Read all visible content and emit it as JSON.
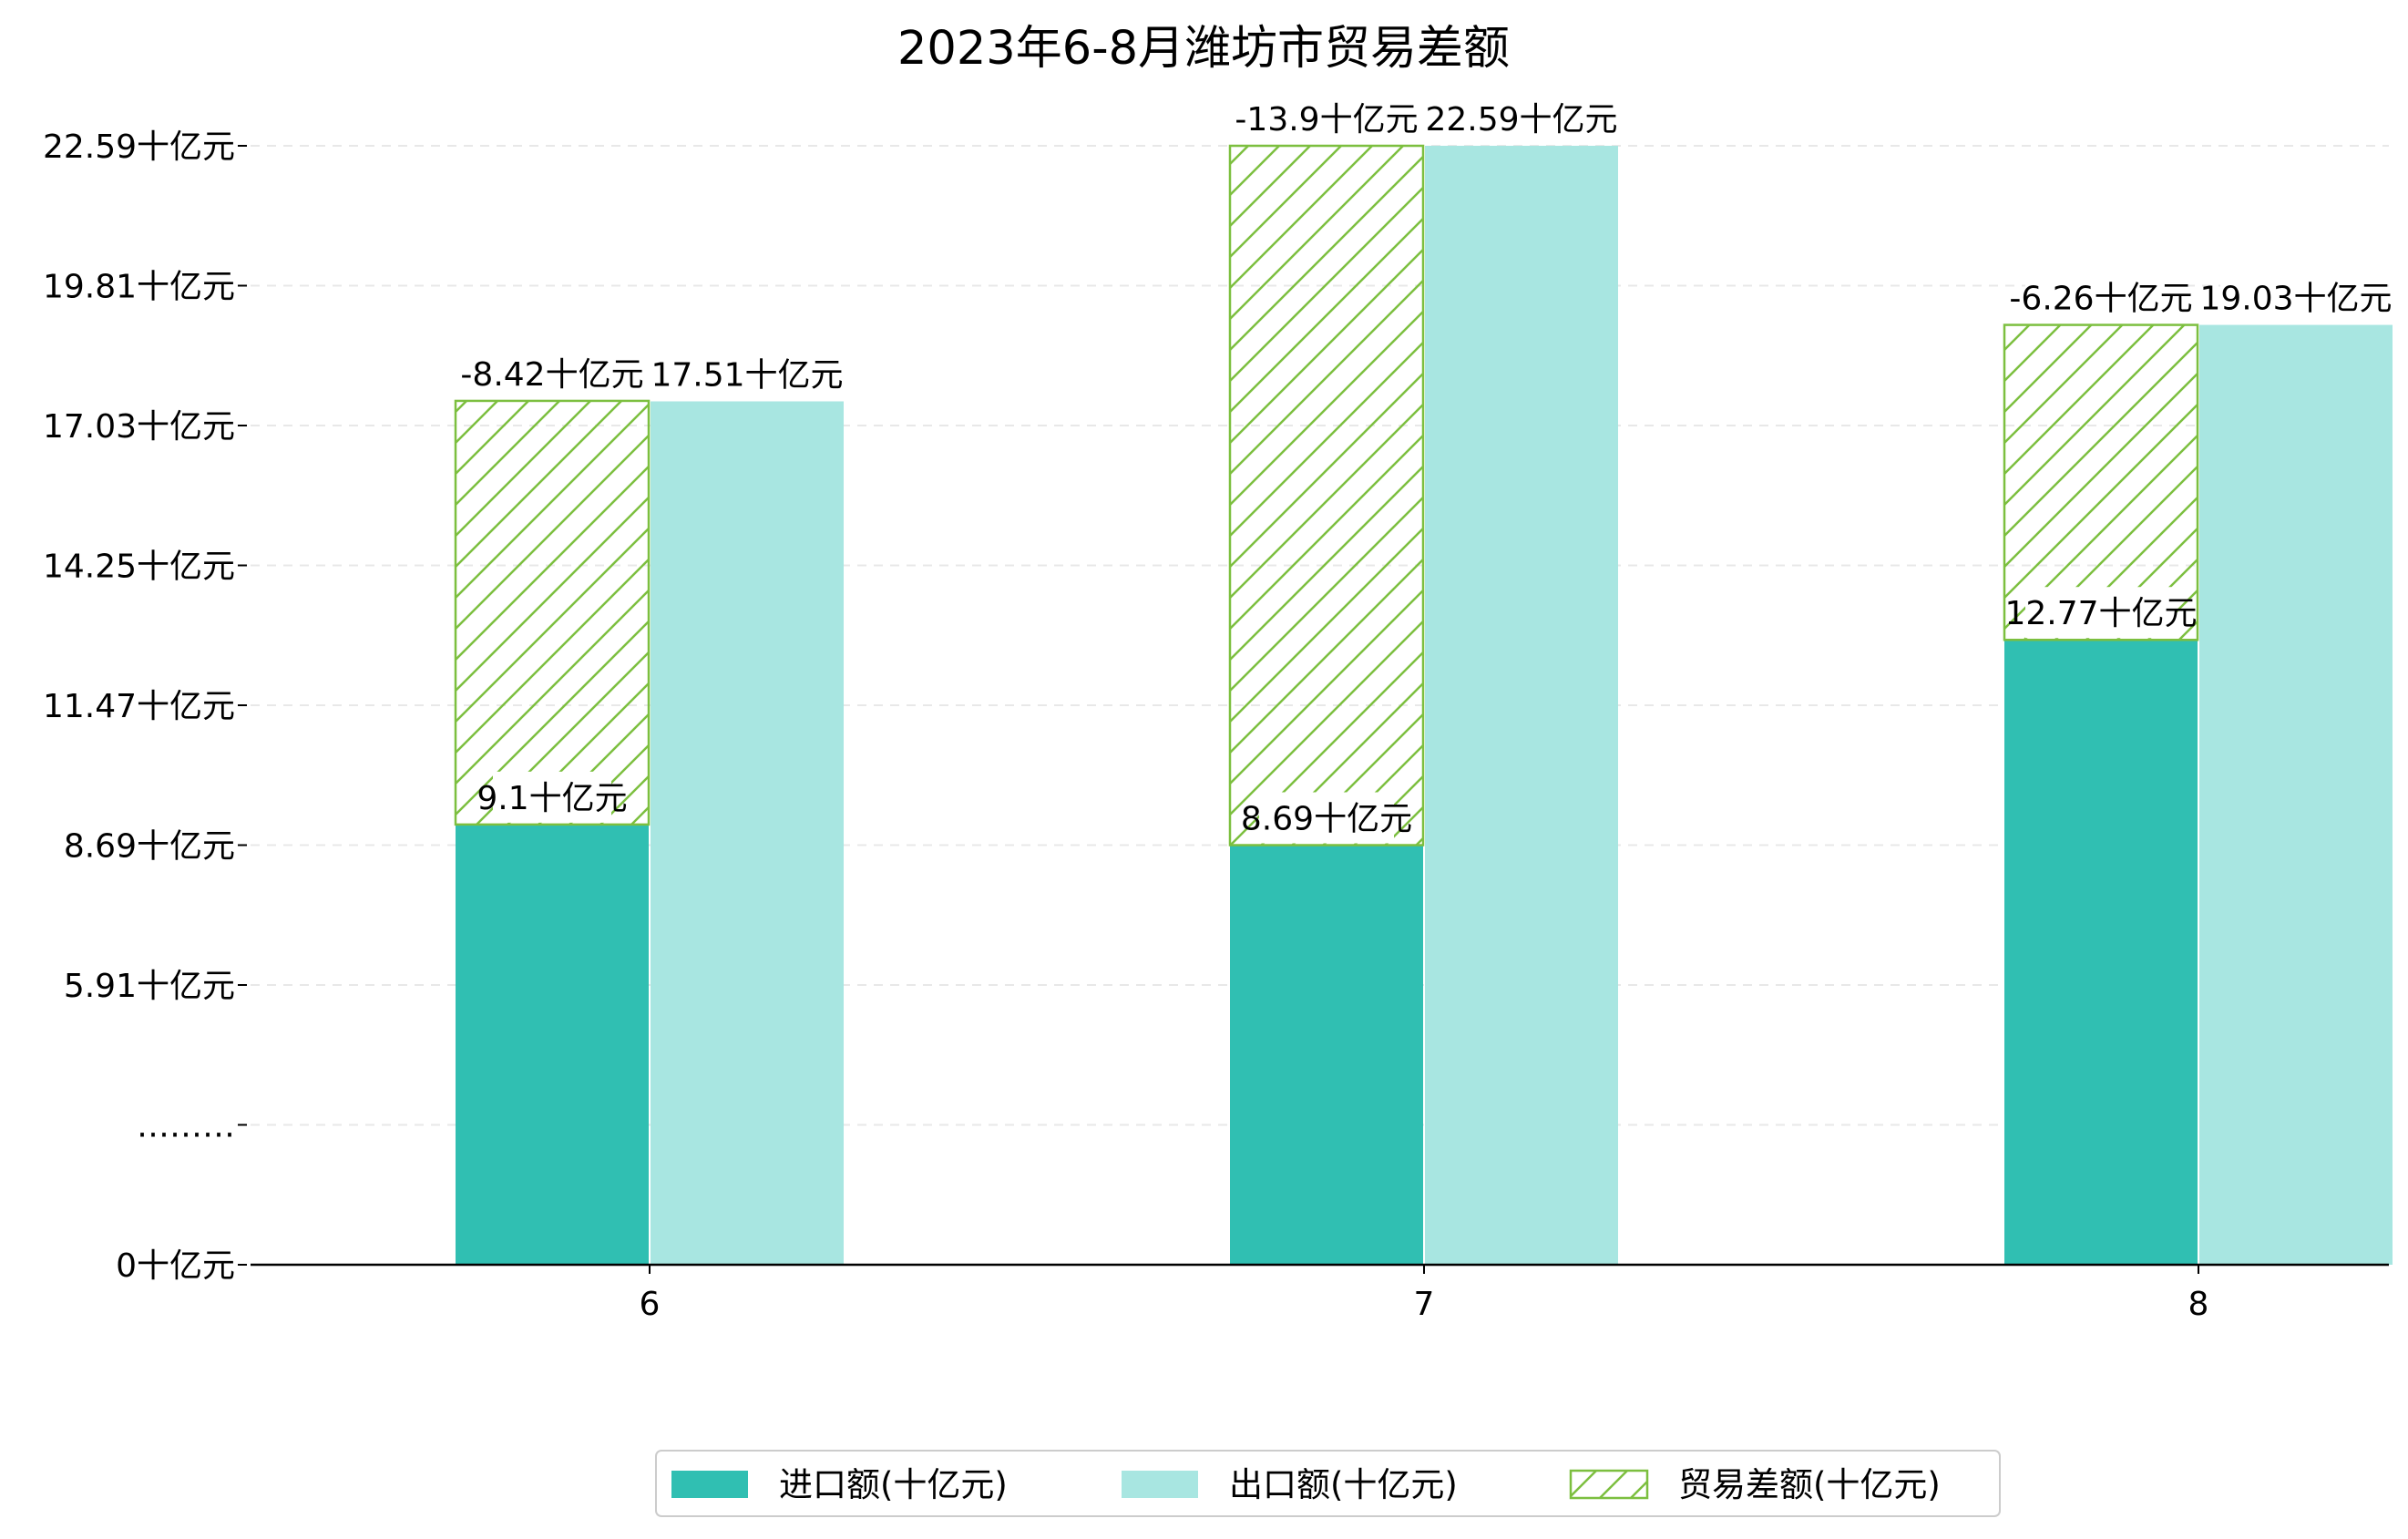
{
  "chart_data": {
    "type": "bar",
    "title": "2023年6-8月潍坊市贸易差额",
    "xlabel": "",
    "ylabel": "",
    "categories": [
      "6",
      "7",
      "8"
    ],
    "ytick_labels": [
      "0十亿元",
      "………",
      "5.91十亿元",
      "8.69十亿元",
      "11.47十亿元",
      "14.25十亿元",
      "17.03十亿元",
      "19.81十亿元",
      "22.59十亿元"
    ],
    "unit": "十亿元",
    "series": [
      {
        "name": "进口额(十亿元)",
        "values": [
          9.1,
          8.69,
          12.77
        ],
        "labels": [
          "9.1十亿元",
          "8.69十亿元",
          "12.77十亿元"
        ],
        "color": "#30bfb2"
      },
      {
        "name": "出口额(十亿元)",
        "values": [
          17.51,
          22.59,
          19.03
        ],
        "labels": [
          "17.51十亿元",
          "22.59十亿元",
          "19.03十亿元"
        ],
        "color": "#a8e6e1"
      },
      {
        "name": "贸易差额(十亿元)",
        "values": [
          -8.42,
          -13.9,
          -6.26
        ],
        "labels": [
          "-8.42十亿元",
          "-13.9十亿元",
          "-6.26十亿元"
        ],
        "color": "#7cbf3f"
      }
    ],
    "grid": true,
    "legend_position": "bottom"
  }
}
